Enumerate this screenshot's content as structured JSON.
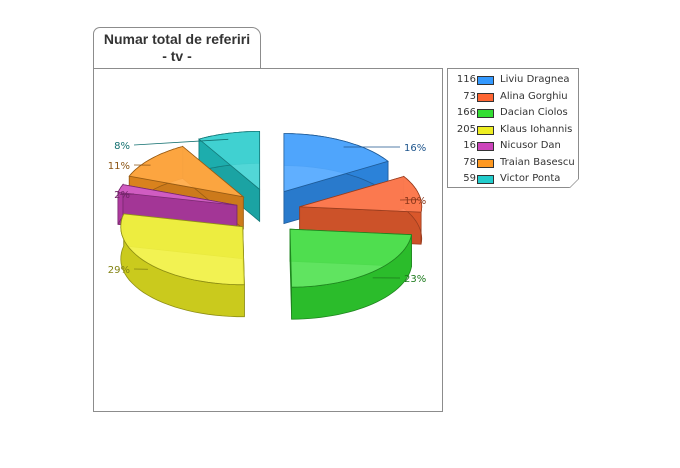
{
  "chart_data": {
    "type": "pie",
    "title": [
      "Numar total de referiri",
      "- tv -"
    ],
    "slices": [
      {
        "label": "Liviu Dragnea",
        "value": 116,
        "percent_label": "16%",
        "color": "#3399ff"
      },
      {
        "label": "Alina Gorghiu",
        "value": 73,
        "percent_label": "10%",
        "color": "#ff6633"
      },
      {
        "label": "Dacian Ciolos",
        "value": 166,
        "percent_label": "23%",
        "color": "#33dd33"
      },
      {
        "label": "Klaus Iohannis",
        "value": 205,
        "percent_label": "29%",
        "color": "#eeee22"
      },
      {
        "label": "Nicusor Dan",
        "value": 16,
        "percent_label": "2%",
        "color": "#cc44bb"
      },
      {
        "label": "Traian Basescu",
        "value": 78,
        "percent_label": "11%",
        "color": "#ff9922"
      },
      {
        "label": "Victor Ponta",
        "value": 59,
        "percent_label": "8%",
        "color": "#22cccc"
      }
    ],
    "legend_position": "right"
  }
}
